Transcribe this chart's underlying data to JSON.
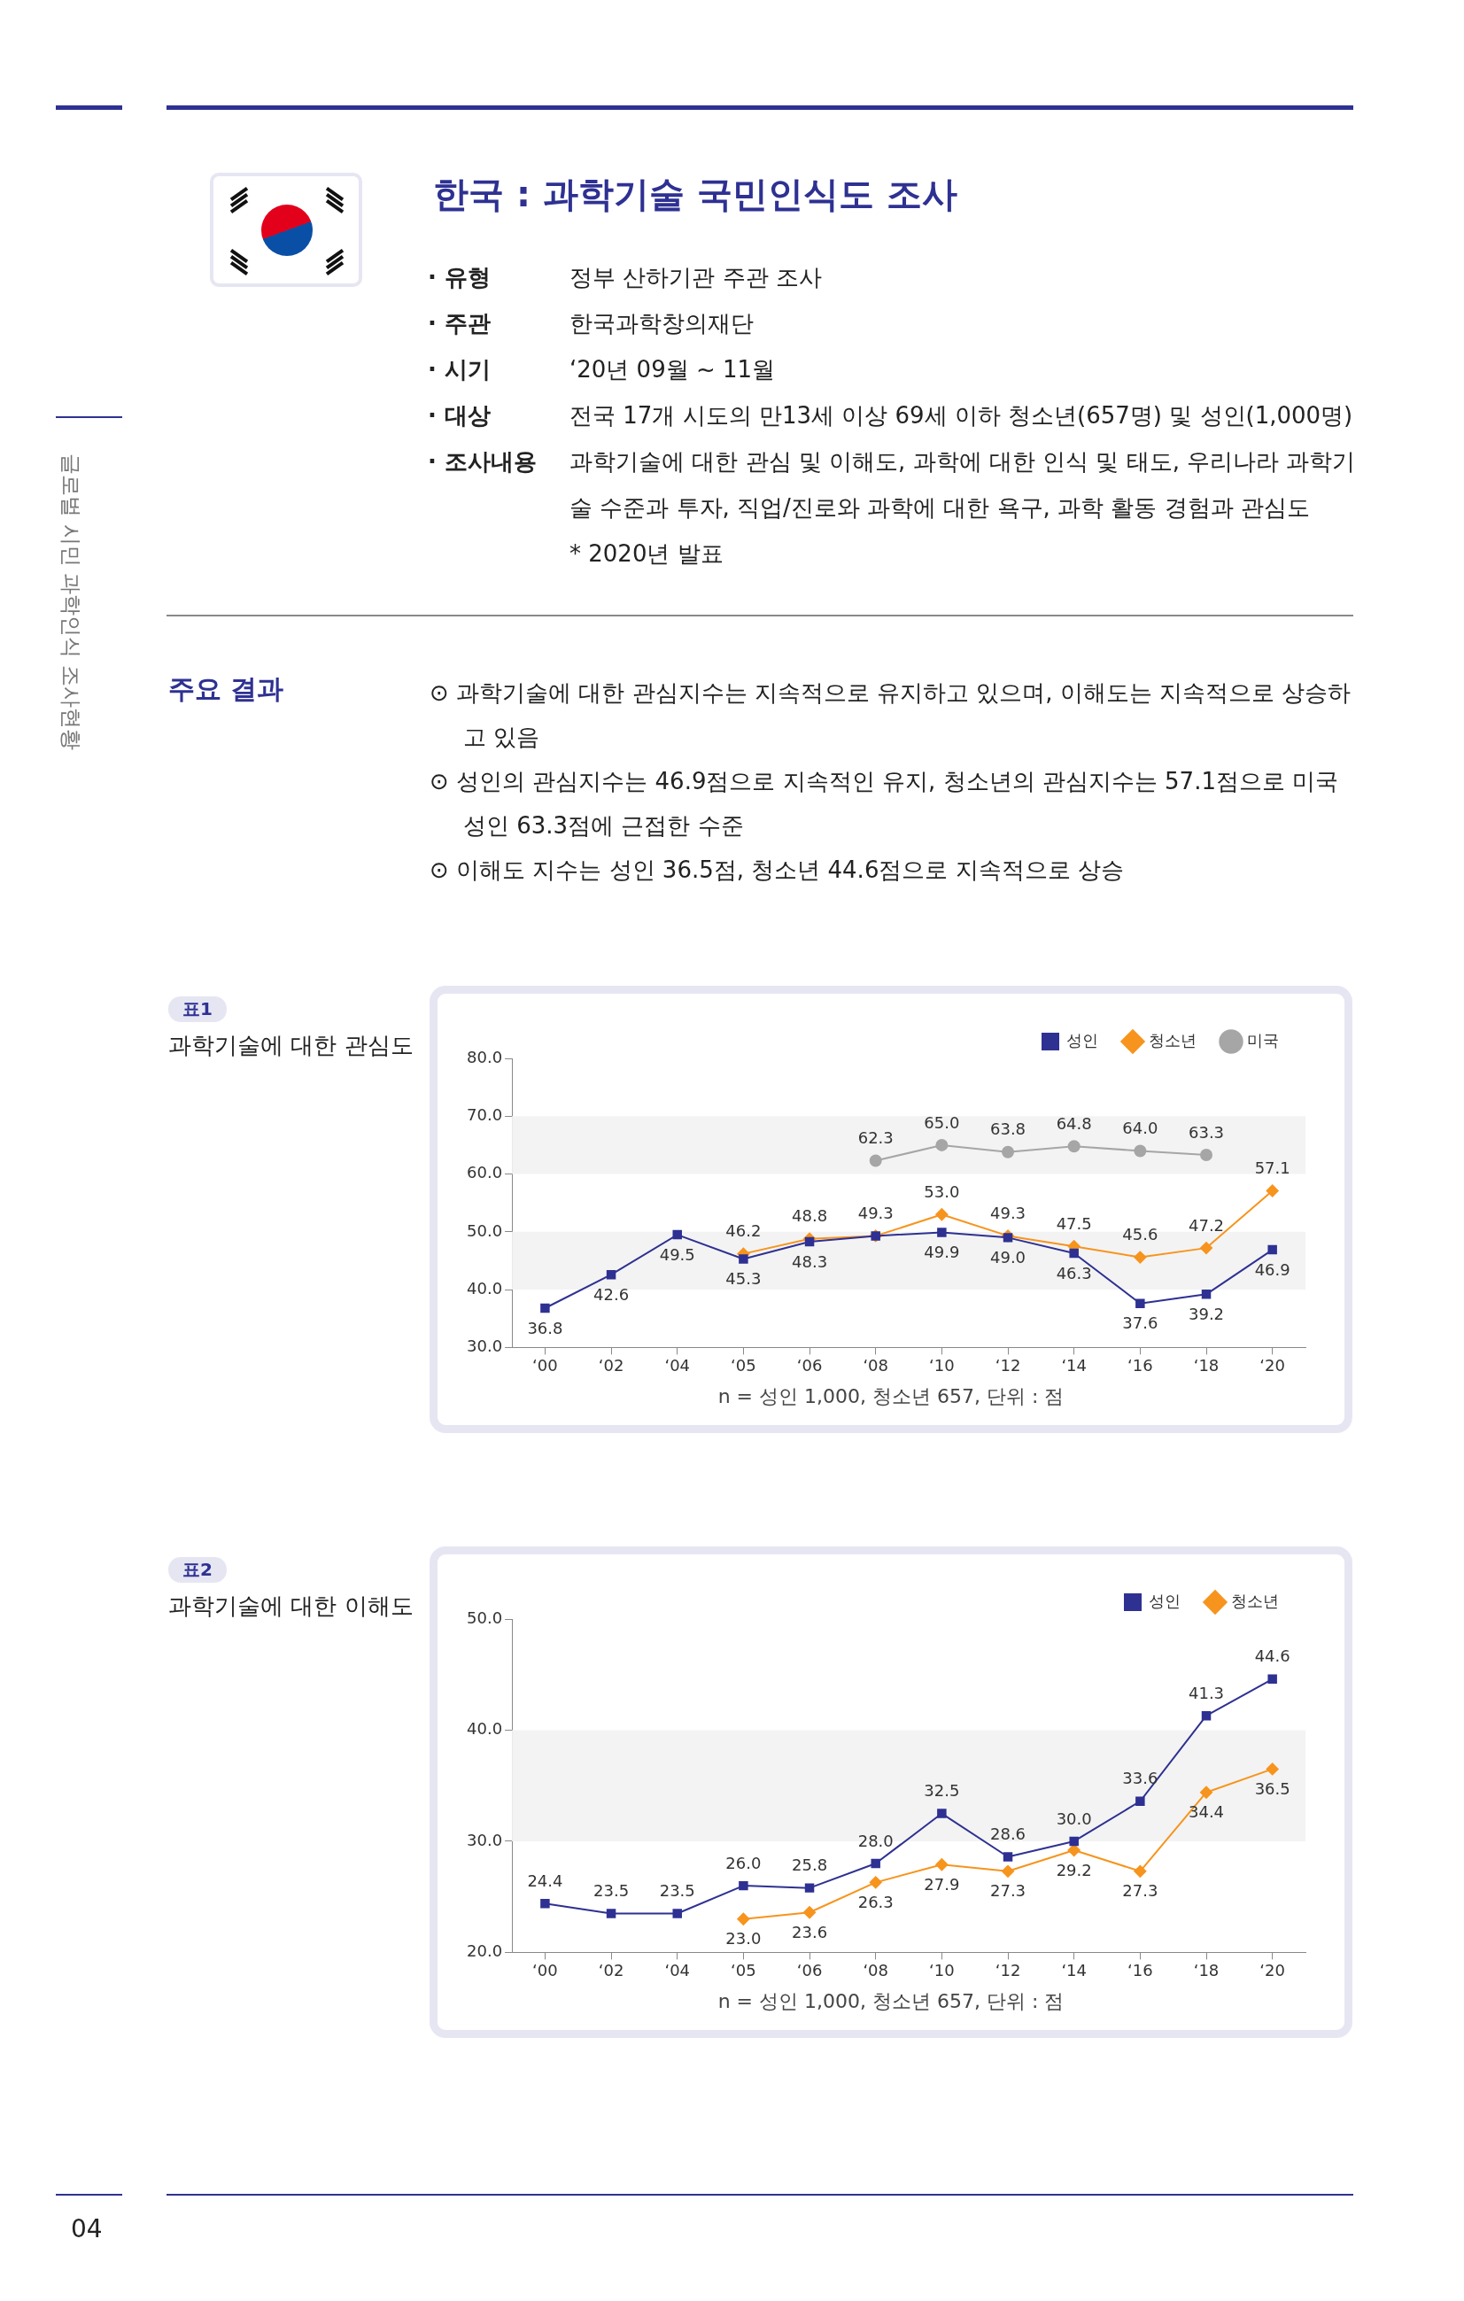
{
  "chart_data": [
    {
      "type": "other",
      "title": "한국 : 과학기술 국민인식도 조사",
      "annotations": [
        "· 유형",
        "정부 산하기관 주관 조사",
        "· 주관",
        "한국과학창의재단",
        "· 시기",
        "‘20년 09월 ~ 11월",
        "· 대상",
        "전국 17개 시도의 만13세 이상 69세 이하 청소년(657명) 및 성인(1,000명)",
        "· 조사내용",
        "과학기술에 대한 관심 및 이해도, 과학에 대한 인식 및 태도, 우리나라 과학기술 수준과 투자, 직업/진로와 과학에 대한 욕구, 과학 활동 경험과 관심도",
        "* 2020년 발표",
        "주요 결과",
        "⊙ 과학기술에 대한 관심지수는 지속적으로 유지하고 있으며, 이해도는 지속적으로 상승하고 있음",
        "⊙ 성인의 관심지수는 46.9점으로 지속적인 유지, 청소년의 관심지수는 57.1점으로 미국 성인 63.3점에 근접한 수준",
        "⊙ 이해도 지수는 성인 36.5점, 청소년 44.6점으로 지속적으로 상승",
        "글로벌 시민 과학인식 조사현황",
        "04"
      ]
    },
    {
      "type": "line",
      "title": "과학기술에 대한 관심도",
      "annotations": [
        "표1",
        "n = 성인 1,000,  청소년 657,  단위 : 점"
      ],
      "categories": [
        "‘00",
        "‘02",
        "‘04",
        "‘05",
        "‘06",
        "‘08",
        "‘10",
        "‘12",
        "‘14",
        "‘16",
        "‘18",
        "‘20"
      ],
      "ylim": [
        30,
        80
      ],
      "yticks": [
        {
          "value": 30,
          "label": "30.0"
        },
        {
          "value": 40,
          "label": "40.0"
        },
        {
          "value": 50,
          "label": "50.0"
        },
        {
          "value": 60,
          "label": "60.0"
        },
        {
          "value": 70,
          "label": "70.0"
        },
        {
          "value": 80,
          "label": "80.0"
        }
      ],
      "grid": false,
      "legend": "top right",
      "bands": [
        {
          "axis": "y",
          "from": 40,
          "to": 50,
          "color": "#f3f3f3"
        },
        {
          "axis": "y",
          "from": 60,
          "to": 70,
          "color": "#f3f3f3"
        }
      ],
      "series": [
        {
          "name": "성인",
          "color": "#2e3192",
          "marker": "square",
          "values": [
            36.8,
            42.6,
            49.5,
            45.3,
            48.3,
            49.3,
            49.9,
            49.0,
            46.3,
            37.6,
            39.2,
            46.9
          ],
          "value_labels": [
            "36.8",
            "42.6",
            "49.5",
            "45.3",
            "48.3",
            null,
            "49.9",
            "49.0",
            "46.3",
            "37.6",
            "39.2",
            "46.9"
          ]
        },
        {
          "name": "청소년",
          "color": "#f7941d",
          "marker": "diamond",
          "values": [
            null,
            null,
            null,
            46.2,
            48.8,
            49.3,
            53.0,
            49.3,
            47.5,
            45.6,
            47.2,
            57.1
          ],
          "value_labels": [
            null,
            null,
            null,
            "46.2",
            "48.8",
            "49.3",
            "53.0",
            "49.3",
            "47.5",
            "45.6",
            "47.2",
            "57.1"
          ]
        },
        {
          "name": "미국",
          "color": "#a6a6a6",
          "marker": "circle",
          "values": [
            null,
            null,
            null,
            null,
            null,
            62.3,
            65.0,
            63.8,
            64.8,
            64.0,
            63.3,
            null
          ],
          "value_labels": [
            null,
            null,
            null,
            null,
            null,
            "62.3",
            "65.0",
            "63.8",
            "64.8",
            "64.0",
            "63.3",
            null
          ]
        }
      ]
    },
    {
      "type": "line",
      "title": "과학기술에 대한 이해도",
      "annotations": [
        "표2",
        "n = 성인 1,000,  청소년 657,  단위 : 점"
      ],
      "categories": [
        "‘00",
        "‘02",
        "‘04",
        "‘05",
        "‘06",
        "‘08",
        "‘10",
        "‘12",
        "‘14",
        "‘16",
        "‘18",
        "‘20"
      ],
      "ylim": [
        20,
        50
      ],
      "yticks": [
        {
          "value": 20,
          "label": "20.0"
        },
        {
          "value": 30,
          "label": "30.0"
        },
        {
          "value": 40,
          "label": "40.0"
        },
        {
          "value": 50,
          "label": "50.0"
        }
      ],
      "grid": false,
      "legend": "top right",
      "bands": [
        {
          "axis": "y",
          "from": 30,
          "to": 40,
          "color": "#f3f3f3"
        }
      ],
      "series": [
        {
          "name": "성인",
          "color": "#2e3192",
          "marker": "square",
          "values": [
            24.4,
            23.5,
            23.5,
            26.0,
            25.8,
            28.0,
            32.5,
            28.6,
            30.0,
            33.6,
            41.3,
            44.6
          ],
          "value_labels": [
            "24.4",
            "23.5",
            "23.5",
            "26.0",
            "25.8",
            "28.0",
            "32.5",
            "28.6",
            "30.0",
            "33.6",
            "41.3",
            "44.6"
          ]
        },
        {
          "name": "청소년",
          "color": "#f7941d",
          "marker": "diamond",
          "values": [
            null,
            null,
            null,
            23.0,
            23.6,
            26.3,
            27.9,
            27.3,
            29.2,
            27.3,
            34.4,
            36.5
          ],
          "value_labels": [
            null,
            null,
            null,
            "23.0",
            "23.6",
            "26.3",
            "27.9",
            "27.3",
            "29.2",
            "27.3",
            "34.4",
            "36.5"
          ]
        }
      ]
    }
  ]
}
